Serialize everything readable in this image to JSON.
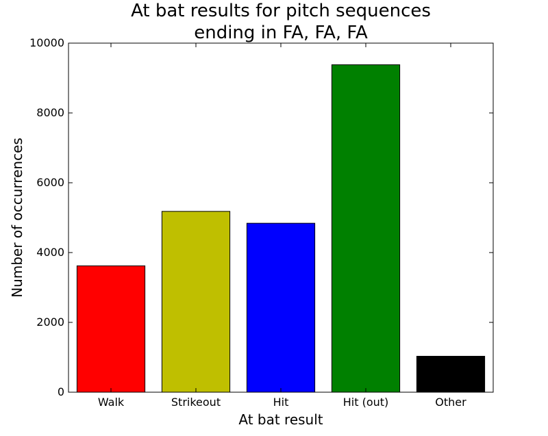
{
  "chart_data": {
    "type": "bar",
    "title_lines": [
      "At bat results for pitch sequences",
      "ending in FA, FA, FA"
    ],
    "xlabel": "At bat result",
    "ylabel": "Number of occurrences",
    "categories": [
      "Walk",
      "Strikeout",
      "Hit",
      "Hit (out)",
      "Other"
    ],
    "values": [
      3620,
      5180,
      4840,
      9380,
      1030
    ],
    "colors": [
      "#ff0000",
      "#bfbf00",
      "#0000ff",
      "#008000",
      "#000000"
    ],
    "ylim": [
      0,
      10000
    ],
    "yticks": [
      0,
      2000,
      4000,
      6000,
      8000,
      10000
    ],
    "ytick_labels": [
      "0",
      "2000",
      "4000",
      "6000",
      "8000",
      "10000"
    ],
    "grid": false,
    "legend": "none"
  }
}
